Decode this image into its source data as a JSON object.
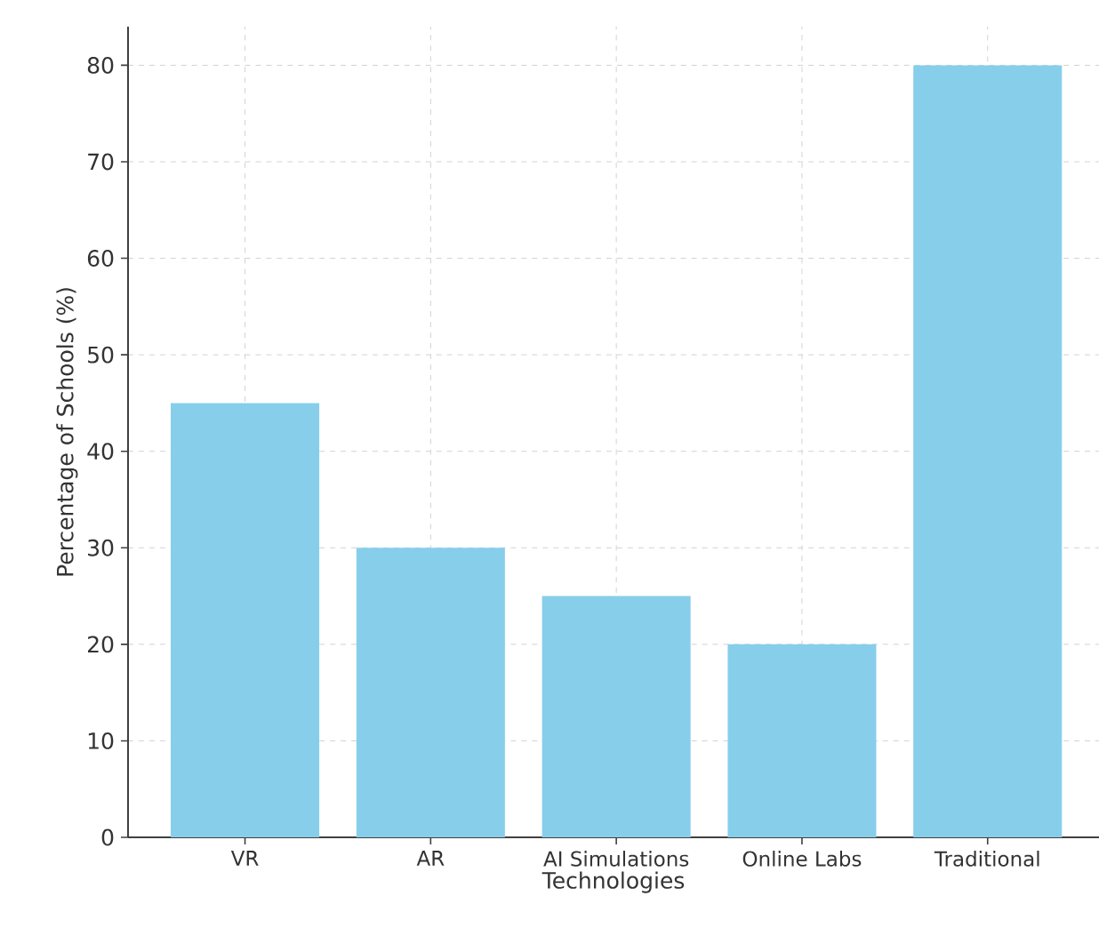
{
  "chart_data": {
    "type": "bar",
    "xlabel": "Technologies",
    "ylabel": "Percentage of Schools (%)",
    "categories": [
      "VR",
      "AR",
      "AI Simulations",
      "Online Labs",
      "Traditional"
    ],
    "values": [
      45,
      30,
      25,
      20,
      80
    ],
    "color": "#87ceeb",
    "ylim": [
      0,
      84
    ],
    "yticks": [
      0,
      10,
      20,
      30,
      40,
      50,
      60,
      70,
      80
    ],
    "grid": true
  }
}
